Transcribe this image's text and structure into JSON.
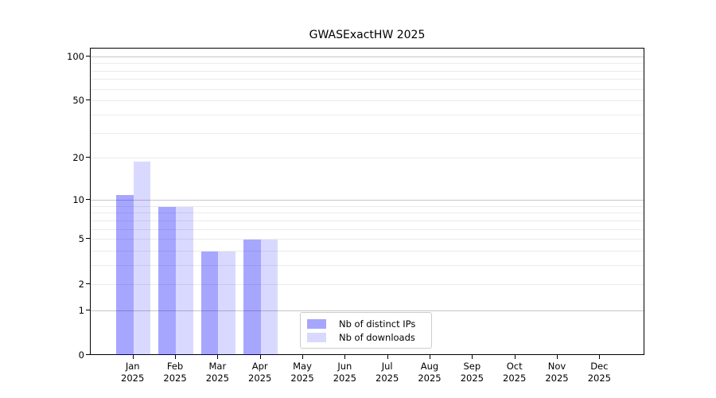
{
  "title": "GWASExactHW 2025",
  "legend": {
    "items": [
      {
        "label": "Nb of distinct IPs",
        "swatch": "swatch-distinct-ips"
      },
      {
        "label": "Nb of downloads",
        "swatch": "swatch-downloads"
      }
    ]
  },
  "colors": {
    "bar_distinct_ips": "#0000ff59",
    "bar_downloads": "#0000ff26",
    "grid_major": "#c6c6c6",
    "grid_minor": "#ebebeb",
    "axis": "#000000"
  },
  "chart_data": {
    "type": "bar",
    "title": "GWASExactHW 2025",
    "categories": [
      "Jan 2025",
      "Feb 2025",
      "Mar 2025",
      "Apr 2025",
      "May 2025",
      "Jun 2025",
      "Jul 2025",
      "Aug 2025",
      "Sep 2025",
      "Oct 2025",
      "Nov 2025",
      "Dec 2025"
    ],
    "series": [
      {
        "name": "Nb of distinct IPs",
        "color": "#0000ff59",
        "values": [
          11,
          9,
          4,
          5,
          0,
          0,
          0,
          0,
          0,
          0,
          0,
          0
        ]
      },
      {
        "name": "Nb of downloads",
        "color": "#0000ff26",
        "values": [
          19,
          9,
          4,
          5,
          0,
          0,
          0,
          0,
          0,
          0,
          0,
          0
        ]
      }
    ],
    "xlabel": "",
    "ylabel": "",
    "yscale": "log1p",
    "ylim": [
      0,
      114
    ],
    "yticks": [
      0,
      1,
      2,
      5,
      10,
      20,
      50,
      100
    ],
    "gridlines_major": [
      1,
      10,
      100
    ],
    "gridlines_minor": [
      2,
      3,
      4,
      5,
      6,
      7,
      8,
      9,
      20,
      30,
      40,
      50,
      60,
      70,
      80,
      90
    ],
    "grid": "on",
    "legend_position": "inside-bottom-center"
  }
}
